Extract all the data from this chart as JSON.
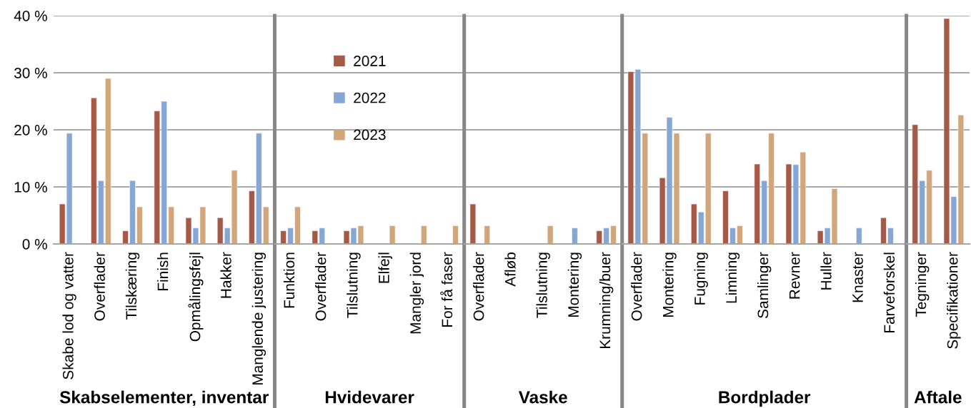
{
  "chart_data": [
    {
      "type": "bar",
      "xlabel": "Skabselementer, inventar",
      "categories": [
        "Skabe lod og vatter",
        "Overflader",
        "Tilskæring",
        "Finish",
        "Opmålingsfejl",
        "Hakker",
        "Manglende justering"
      ],
      "series": [
        {
          "color": "#a55a48",
          "values": [
            7.0,
            25.6,
            2.3,
            23.3,
            4.6,
            4.6,
            9.3
          ]
        },
        {
          "color": "#86a6d4",
          "values": [
            19.4,
            11.1,
            11.1,
            25.0,
            2.8,
            2.8,
            19.4
          ]
        },
        {
          "color": "#d1a67a",
          "values": [
            null,
            29.0,
            6.5,
            6.5,
            6.5,
            12.9,
            6.5
          ]
        }
      ],
      "ylim": [
        0,
        40
      ],
      "yticks": [
        {
          "value": 0,
          "label": "0 %"
        },
        {
          "value": 10,
          "label": "10 %"
        },
        {
          "value": 20,
          "label": "20 %"
        },
        {
          "value": 30,
          "label": "30 %"
        },
        {
          "value": 40,
          "label": "40 %"
        }
      ],
      "grid": "y"
    },
    {
      "type": "bar",
      "xlabel": "Hvidevarer",
      "categories": [
        "Funktion",
        "Overflader",
        "Tilslutning",
        "Elfejl",
        "Mangler jord",
        "For få faser"
      ],
      "series": [
        {
          "name": "2021",
          "color": "#a55a48",
          "values": [
            2.3,
            2.3,
            2.3,
            null,
            null,
            null
          ]
        },
        {
          "name": "2022",
          "color": "#86a6d4",
          "values": [
            2.8,
            2.8,
            2.8,
            null,
            null,
            null
          ]
        },
        {
          "name": "2023",
          "color": "#d1a67a",
          "values": [
            6.5,
            null,
            3.2,
            3.2,
            3.2,
            3.2
          ]
        }
      ],
      "ylim": [
        0,
        40
      ],
      "yticks": [
        0,
        10,
        20,
        30,
        40
      ],
      "grid": "y",
      "tick_labels": "x",
      "legend": "top"
    },
    {
      "type": "bar",
      "xlabel": "Vaske",
      "categories": [
        "Overflader",
        "Afløb",
        "Tilslutning",
        "Montering",
        "Krumning/buer"
      ],
      "series": [
        {
          "color": "#a55a48",
          "values": [
            7.0,
            null,
            null,
            null,
            2.3
          ]
        },
        {
          "color": "#86a6d4",
          "values": [
            null,
            null,
            null,
            2.8,
            2.8
          ]
        },
        {
          "color": "#d1a67a",
          "values": [
            3.2,
            null,
            3.2,
            null,
            3.2
          ]
        }
      ],
      "ylim": [
        0,
        40
      ],
      "yticks": [
        0,
        10,
        20,
        30,
        40
      ],
      "grid": "y",
      "tick_labels": "x"
    },
    {
      "type": "bar",
      "xlabel": "Bordplader",
      "categories": [
        "Overflader",
        "Montering",
        "Fugning",
        "Limning",
        "Samlinger",
        "Revner",
        "Huller",
        "Knaster",
        "Farveforskel"
      ],
      "series": [
        {
          "color": "#a55a48",
          "values": [
            30.2,
            11.6,
            7.0,
            9.3,
            14.0,
            14.0,
            2.3,
            null,
            4.6
          ]
        },
        {
          "color": "#86a6d4",
          "values": [
            30.6,
            22.2,
            5.6,
            2.8,
            11.1,
            13.9,
            2.8,
            2.8,
            2.8
          ]
        },
        {
          "color": "#d1a67a",
          "values": [
            19.4,
            19.4,
            19.4,
            3.2,
            19.4,
            16.1,
            9.7,
            null,
            null
          ]
        }
      ],
      "ylim": [
        0,
        40
      ],
      "yticks": [
        0,
        10,
        20,
        30,
        40
      ],
      "grid": "y",
      "tick_labels": "x"
    },
    {
      "type": "bar",
      "xlabel": "Aftale",
      "categories": [
        "Tegninger",
        "Specifikationer"
      ],
      "series": [
        {
          "color": "#a55a48",
          "values": [
            20.9,
            39.5
          ]
        },
        {
          "color": "#86a6d4",
          "values": [
            11.1,
            8.3
          ]
        },
        {
          "color": "#d1a67a",
          "values": [
            12.9,
            22.6
          ]
        }
      ],
      "ylim": [
        0,
        40
      ],
      "yticks": [
        0,
        10,
        20,
        30,
        40
      ],
      "grid": "y",
      "tick_labels": "x"
    }
  ]
}
